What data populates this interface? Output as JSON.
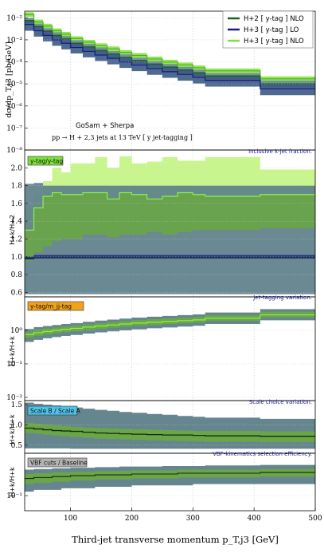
{
  "chart_data": [
    {
      "type": "area",
      "panel": "main",
      "ylabel": "dσ/dp_T,j3 [pb/GeV]",
      "yscale": "log",
      "ylim": [
        1e-08,
        0.02
      ],
      "xlim": [
        25,
        500
      ],
      "y_ticks": [
        "10⁻⁸",
        "10⁻⁷",
        "10⁻⁶",
        "10⁻⁵",
        "10⁻⁴",
        "10⁻³",
        "10⁻²"
      ],
      "legend": [
        "H+2 [ y-tag ] NLO",
        "H+3 [ y-tag ] LO",
        "H+3 [ y-tag ] NLO"
      ],
      "legend_position": "top-right",
      "annotations": [
        "GoSam + Sherpa",
        "pp → H + 2,3 jets at 13 TeV  [ y jet-tagging ]"
      ],
      "bin_edges": [
        25,
        40,
        55,
        70,
        85,
        100,
        120,
        140,
        160,
        180,
        200,
        225,
        250,
        275,
        300,
        320,
        410,
        500
      ],
      "series": [
        {
          "name": "H+2 [ y-tag ] NLO",
          "color": "#1f5f1f",
          "center": [
            0.0075,
            0.004,
            0.0025,
            0.0016,
            0.0011,
            0.0007,
            0.00048,
            0.00033,
            0.00023,
            0.00016,
            0.000115,
            8e-05,
            5.8e-05,
            4.3e-05,
            3.2e-05,
            2.3e-05,
            1e-05
          ],
          "low": [
            0.0055,
            0.0029,
            0.0018,
            0.00115,
            0.00078,
            0.0005,
            0.00034,
            0.00023,
            0.00016,
            0.00011,
            8e-05,
            5.6e-05,
            4e-05,
            3e-05,
            2.2e-05,
            1.6e-05,
            7e-06
          ],
          "high": [
            0.01,
            0.0054,
            0.0034,
            0.0022,
            0.0015,
            0.00095,
            0.00065,
            0.00045,
            0.00031,
            0.00022,
            0.000155,
            0.00011,
            8e-05,
            5.9e-05,
            4.4e-05,
            3.1e-05,
            1.4e-05
          ]
        },
        {
          "name": "H+3 [ y-tag ] LO",
          "color": "#1a1a8a",
          "center": [
            0.005,
            0.0026,
            0.0016,
            0.001,
            0.0007,
            0.00045,
            0.0003,
            0.000205,
            0.000145,
            0.0001,
            7.2e-05,
            5e-05,
            3.6e-05,
            2.7e-05,
            2e-05,
            1.45e-05,
            6e-06
          ],
          "low": [
            0.0026,
            0.0014,
            0.00085,
            0.00054,
            0.00037,
            0.00024,
            0.00016,
            0.00011,
            7.7e-05,
            5.3e-05,
            3.8e-05,
            2.6e-05,
            1.9e-05,
            1.4e-05,
            1.05e-05,
            7.6e-06,
            3.1e-06
          ],
          "high": [
            0.008,
            0.0043,
            0.0026,
            0.00165,
            0.00115,
            0.00074,
            0.0005,
            0.00034,
            0.00024,
            0.000165,
            0.00012,
            8.3e-05,
            6e-05,
            4.5e-05,
            3.3e-05,
            2.4e-05,
            1e-05
          ]
        },
        {
          "name": "H+3 [ y-tag ] NLO",
          "color": "#7ee03a",
          "center": [
            0.014,
            0.0065,
            0.0042,
            0.0026,
            0.0018,
            0.00115,
            0.00078,
            0.00054,
            0.00039,
            0.00027,
            0.000195,
            0.000135,
            9.8e-05,
            7.3e-05,
            5.4e-05,
            3.9e-05,
            1.7e-05
          ],
          "low": [
            0.011,
            0.0052,
            0.0034,
            0.0021,
            0.00145,
            0.00092,
            0.00063,
            0.00043,
            0.00031,
            0.00022,
            0.000155,
            0.00011,
            7.8e-05,
            5.8e-05,
            4.3e-05,
            3.1e-05,
            1.35e-05
          ],
          "high": [
            0.018,
            0.0083,
            0.0054,
            0.0033,
            0.0023,
            0.00145,
            0.00099,
            0.00069,
            0.0005,
            0.000345,
            0.00025,
            0.000175,
            0.000125,
            9.3e-05,
            6.9e-05,
            5e-05,
            2.2e-05
          ]
        }
      ]
    },
    {
      "type": "area",
      "panel": "ratio1",
      "title": "Inclusive k-jet fraction.",
      "tag": "y-tag/y-tag",
      "tag_color": "#7ee03a",
      "ylabel": "H+k/H+2",
      "ylim": [
        0.55,
        2.2
      ],
      "y_ticks": [
        "0.6",
        "0.8",
        "1.0",
        "1.2",
        "1.4",
        "1.6",
        "1.8",
        "2.0"
      ],
      "bin_edges": [
        25,
        40,
        55,
        70,
        85,
        100,
        120,
        140,
        160,
        180,
        200,
        225,
        250,
        275,
        300,
        320,
        410,
        500
      ],
      "series": [
        {
          "name": "H+2 [ y-tag ] NLO",
          "center": [
            1.0,
            1.0,
            1.0,
            1.0,
            1.0,
            1.0,
            1.0,
            1.0,
            1.0,
            1.0,
            1.0,
            1.0,
            1.0,
            1.0,
            1.0,
            1.0,
            1.0
          ],
          "low": [
            0.58,
            0.58,
            0.58,
            0.58,
            0.58,
            0.58,
            0.58,
            0.58,
            0.58,
            0.58,
            0.58,
            0.58,
            0.58,
            0.58,
            0.58,
            0.58,
            0.58
          ],
          "high": [
            1.82,
            1.83,
            1.8,
            1.8,
            1.8,
            1.8,
            1.8,
            1.8,
            1.8,
            1.8,
            1.8,
            1.8,
            1.8,
            1.8,
            1.8,
            1.8,
            1.8
          ]
        },
        {
          "name": "H+3 [ y-tag ] LO",
          "center": [
            0.98,
            1.0,
            1.0,
            1.0,
            1.0,
            1.0,
            1.0,
            1.0,
            1.0,
            1.0,
            1.0,
            1.0,
            1.0,
            1.0,
            1.0,
            1.0,
            1.0
          ],
          "low": [
            0.97,
            0.98,
            0.98,
            0.98,
            0.98,
            0.98,
            0.98,
            0.98,
            0.98,
            0.98,
            0.98,
            0.98,
            0.98,
            0.98,
            0.98,
            0.98,
            0.98
          ],
          "high": [
            1.0,
            1.02,
            1.02,
            1.02,
            1.02,
            1.02,
            1.02,
            1.02,
            1.02,
            1.02,
            1.02,
            1.02,
            1.02,
            1.02,
            1.02,
            1.02,
            1.02
          ]
        },
        {
          "name": "H+3 [ y-tag ] NLO",
          "center": [
            1.3,
            1.55,
            1.68,
            1.72,
            1.7,
            1.7,
            1.72,
            1.72,
            1.65,
            1.72,
            1.7,
            1.65,
            1.68,
            1.72,
            1.7,
            1.68,
            1.7
          ],
          "low": [
            0.95,
            1.05,
            1.12,
            1.18,
            1.2,
            1.2,
            1.25,
            1.25,
            1.22,
            1.25,
            1.25,
            1.28,
            1.25,
            1.28,
            1.3,
            1.3,
            1.32
          ],
          "high": [
            1.55,
            1.7,
            1.85,
            2.0,
            1.95,
            2.05,
            2.05,
            2.12,
            2.0,
            2.13,
            2.05,
            2.07,
            2.12,
            2.08,
            2.08,
            2.12,
            1.98
          ]
        }
      ]
    },
    {
      "type": "area",
      "panel": "ratio2",
      "title": "Jet-tagging variation.",
      "tag": "y-tag/m_jj-tag",
      "tag_color": "#f0a21c",
      "ylabel": "H+k/H+k",
      "yscale": "log",
      "ylim": [
        0.008,
        10
      ],
      "y_ticks": [
        "10⁻²",
        "10⁻¹",
        "10⁰"
      ],
      "bin_edges": [
        25,
        40,
        55,
        70,
        85,
        100,
        120,
        140,
        160,
        180,
        200,
        225,
        250,
        275,
        300,
        320,
        410,
        500
      ],
      "series": [
        {
          "name": "band",
          "center": [
            0.75,
            0.85,
            0.92,
            1.0,
            1.08,
            1.15,
            1.25,
            1.35,
            1.45,
            1.55,
            1.65,
            1.75,
            1.85,
            1.95,
            2.05,
            2.3,
            2.9
          ],
          "low": [
            0.45,
            0.52,
            0.58,
            0.63,
            0.68,
            0.73,
            0.8,
            0.87,
            0.93,
            1.0,
            1.07,
            1.15,
            1.22,
            1.3,
            1.37,
            1.55,
            2.0
          ],
          "high": [
            1.1,
            1.25,
            1.35,
            1.45,
            1.55,
            1.65,
            1.8,
            1.95,
            2.1,
            2.25,
            2.4,
            2.55,
            2.7,
            2.85,
            3.0,
            3.4,
            4.3
          ]
        }
      ]
    },
    {
      "type": "area",
      "panel": "ratio3",
      "title": "Scale choice variation.",
      "tag": "Scale B / Scale A",
      "tag_color": "#4ec3e8",
      "ylabel": "H+k/H+k",
      "ylim": [
        0.3,
        1.6
      ],
      "y_ticks": [
        "0.5",
        "1.0",
        "1.5"
      ],
      "bin_edges": [
        25,
        40,
        55,
        70,
        85,
        100,
        120,
        140,
        160,
        180,
        200,
        225,
        250,
        275,
        300,
        320,
        410,
        500
      ],
      "series": [
        {
          "name": "outer",
          "center": [
            0.92,
            0.9,
            0.88,
            0.86,
            0.85,
            0.84,
            0.82,
            0.8,
            0.79,
            0.78,
            0.77,
            0.76,
            0.75,
            0.75,
            0.74,
            0.73,
            0.72
          ],
          "low": [
            0.42,
            0.42,
            0.42,
            0.42,
            0.42,
            0.41,
            0.41,
            0.41,
            0.41,
            0.41,
            0.41,
            0.41,
            0.41,
            0.41,
            0.41,
            0.41,
            0.41
          ],
          "high": [
            1.55,
            1.52,
            1.5,
            1.48,
            1.46,
            1.43,
            1.4,
            1.37,
            1.35,
            1.32,
            1.3,
            1.27,
            1.25,
            1.22,
            1.2,
            1.18,
            1.15
          ]
        },
        {
          "name": "inner",
          "center": [
            0.92,
            0.9,
            0.88,
            0.86,
            0.85,
            0.84,
            0.82,
            0.8,
            0.79,
            0.78,
            0.77,
            0.76,
            0.75,
            0.75,
            0.74,
            0.73,
            0.72
          ],
          "low": [
            0.8,
            0.78,
            0.76,
            0.74,
            0.72,
            0.7,
            0.68,
            0.66,
            0.65,
            0.64,
            0.63,
            0.62,
            0.61,
            0.6,
            0.59,
            0.58,
            0.57
          ],
          "high": [
            1.05,
            1.03,
            1.01,
            0.99,
            0.97,
            0.95,
            0.93,
            0.92,
            0.91,
            0.9,
            0.89,
            0.88,
            0.87,
            0.86,
            0.85,
            0.85,
            0.84
          ]
        }
      ]
    },
    {
      "type": "area",
      "panel": "ratio4",
      "title": "VBF-kinematics selection efficiency.",
      "tag": "VBF cuts / Baseline",
      "tag_color": "#b4b4b4",
      "ylabel": "H+k/H+k",
      "yscale": "log",
      "ylim": [
        0.05,
        0.7
      ],
      "y_ticks": [
        "10⁻¹"
      ],
      "bin_edges": [
        25,
        40,
        55,
        70,
        85,
        100,
        120,
        140,
        160,
        180,
        200,
        225,
        250,
        275,
        300,
        320,
        410,
        500
      ],
      "series": [
        {
          "name": "outer",
          "center": [
            0.22,
            0.23,
            0.23,
            0.24,
            0.24,
            0.25,
            0.25,
            0.26,
            0.26,
            0.26,
            0.27,
            0.27,
            0.27,
            0.28,
            0.28,
            0.28,
            0.29
          ],
          "low": [
            0.12,
            0.13,
            0.13,
            0.13,
            0.14,
            0.14,
            0.14,
            0.15,
            0.15,
            0.15,
            0.16,
            0.16,
            0.16,
            0.16,
            0.17,
            0.17,
            0.17
          ],
          "high": [
            0.33,
            0.34,
            0.34,
            0.35,
            0.35,
            0.36,
            0.36,
            0.37,
            0.37,
            0.38,
            0.38,
            0.38,
            0.39,
            0.39,
            0.39,
            0.4,
            0.41
          ]
        },
        {
          "name": "inner",
          "center": [
            0.22,
            0.23,
            0.23,
            0.24,
            0.24,
            0.25,
            0.25,
            0.26,
            0.26,
            0.26,
            0.27,
            0.27,
            0.27,
            0.28,
            0.28,
            0.28,
            0.29
          ],
          "low": [
            0.17,
            0.18,
            0.18,
            0.19,
            0.19,
            0.2,
            0.2,
            0.21,
            0.21,
            0.21,
            0.22,
            0.22,
            0.22,
            0.23,
            0.23,
            0.23,
            0.24
          ],
          "high": [
            0.27,
            0.28,
            0.28,
            0.29,
            0.29,
            0.3,
            0.3,
            0.31,
            0.31,
            0.31,
            0.32,
            0.32,
            0.32,
            0.33,
            0.33,
            0.33,
            0.34
          ]
        }
      ]
    }
  ],
  "x_axis": {
    "label": "Third-jet transverse momentum  p_T,j3 [GeV]",
    "ticks": [
      "100",
      "200",
      "300",
      "400",
      "500"
    ],
    "xlim": [
      25,
      500
    ]
  },
  "colors": {
    "nlo2": "#1f5f1f",
    "nlo2_band": "#5d7f89",
    "lo3": "#1a1a8a",
    "nlo3": "#7ee03a",
    "nlo3_band": "#c8f58e",
    "mid_band": "#6aa844",
    "title_blue": "#1c1c8c"
  }
}
